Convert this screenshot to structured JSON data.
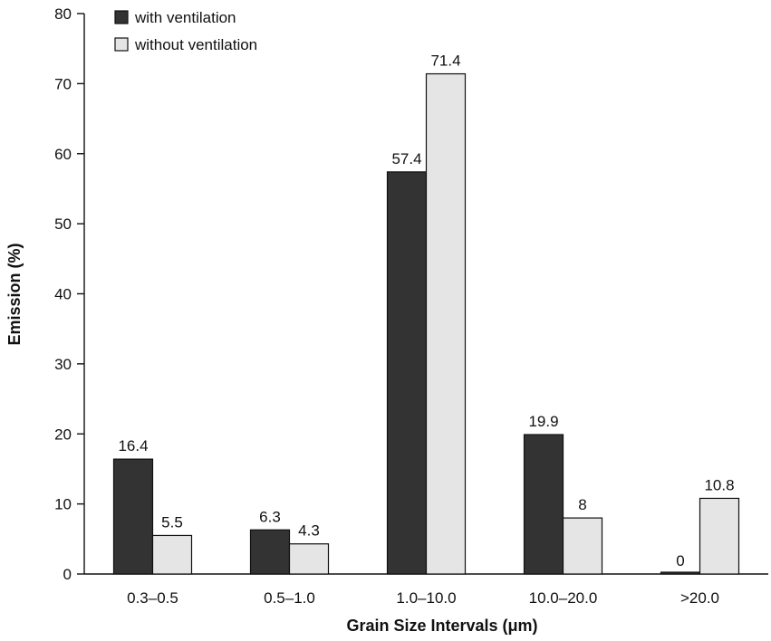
{
  "chart_data": {
    "type": "bar",
    "title": "",
    "xlabel": "Grain Size Intervals (μm)",
    "ylabel": "Emission (%)",
    "ylim": [
      0,
      80
    ],
    "yticks": [
      0,
      10,
      20,
      30,
      40,
      50,
      60,
      70,
      80
    ],
    "categories": [
      "0.3–0.5",
      "0.5–1.0",
      "1.0–10.0",
      "10.0–20.0",
      ">20.0"
    ],
    "series": [
      {
        "name": "with ventilation",
        "color": "#333333",
        "values": [
          16.4,
          6.3,
          57.4,
          19.9,
          0
        ]
      },
      {
        "name": "without ventilation",
        "color": "#e5e5e5",
        "values": [
          5.5,
          4.3,
          71.4,
          8,
          10.8
        ]
      }
    ],
    "data_labels": [
      [
        "16.4",
        "6.3",
        "57.4",
        "19.9",
        "0"
      ],
      [
        "5.5",
        "4.3",
        "71.4",
        "8",
        "10.8"
      ]
    ],
    "legend_position": "top-left",
    "grid": false
  }
}
